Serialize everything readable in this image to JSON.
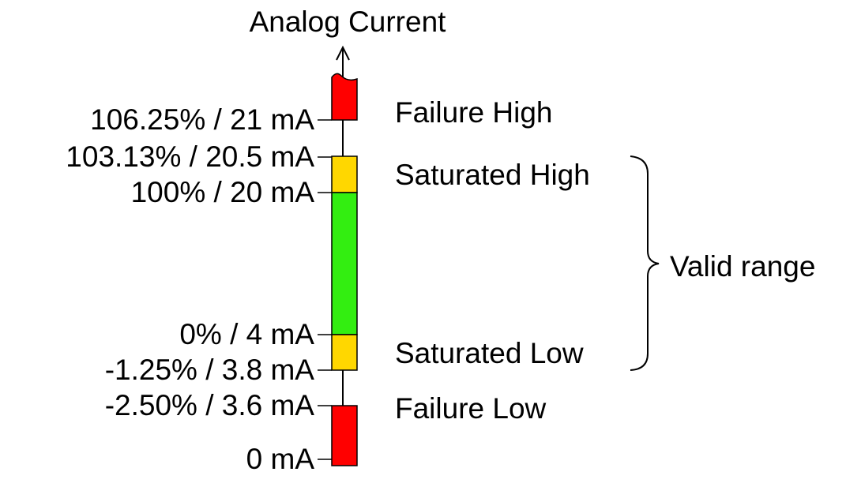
{
  "title": "Analog Current",
  "ticks": [
    "106.25% / 21 mA",
    "103.13% / 20.5 mA",
    "100% / 20 mA",
    "0% / 4 mA",
    "-1.25% / 3.8 mA",
    "-2.50% / 3.6 mA",
    "0 mA"
  ],
  "zones": [
    "Failure High",
    "Saturated High",
    "Saturated Low",
    "Failure Low"
  ],
  "valid_range": "Valid range"
}
